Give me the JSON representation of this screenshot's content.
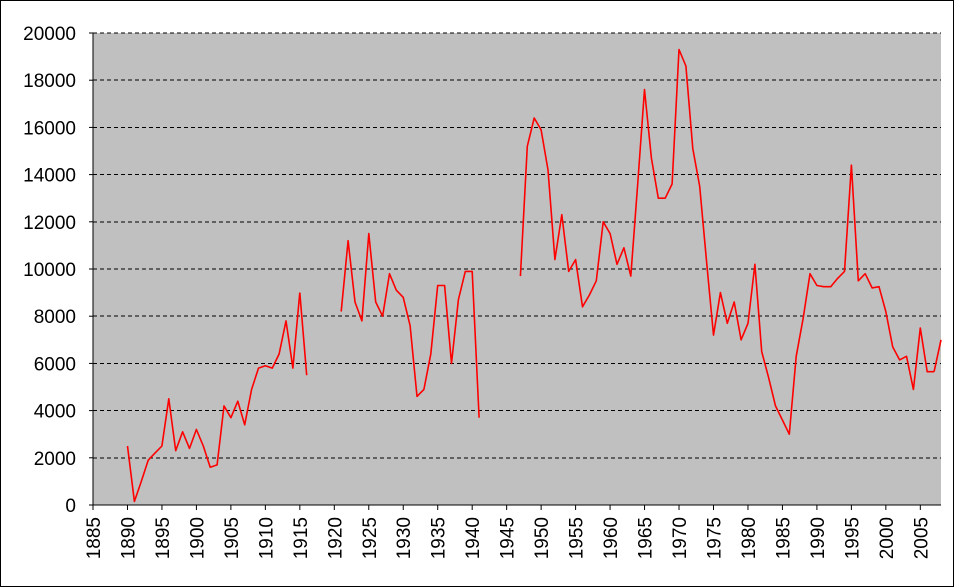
{
  "colors": {
    "plot_background": "#c0c0c0",
    "line": "#ff0000",
    "gridline": "#000000",
    "axis": "#000000"
  },
  "chart_data": {
    "type": "line",
    "title": "",
    "xlabel": "",
    "ylabel": "",
    "xlim": [
      1885,
      2008
    ],
    "ylim": [
      0,
      20000
    ],
    "grid": {
      "horizontal": true,
      "vertical": false,
      "style": "dashed"
    },
    "legend": "none",
    "x_ticks": [
      1885,
      1890,
      1895,
      1900,
      1905,
      1910,
      1915,
      1920,
      1925,
      1930,
      1935,
      1940,
      1945,
      1950,
      1955,
      1960,
      1965,
      1970,
      1975,
      1980,
      1985,
      1990,
      1995,
      2000,
      2005
    ],
    "y_ticks": [
      0,
      2000,
      4000,
      6000,
      8000,
      10000,
      12000,
      14000,
      16000,
      18000,
      20000
    ],
    "series": [
      {
        "color": "#ff0000",
        "segments": [
          {
            "x": [
              1890,
              1891,
              1892,
              1893,
              1894,
              1895,
              1896,
              1897,
              1898,
              1899,
              1900,
              1901,
              1902,
              1903,
              1904,
              1905,
              1906,
              1907,
              1908,
              1909,
              1910,
              1911,
              1912,
              1913,
              1914,
              1915
            ],
            "y": [
              2500,
              150,
              1000,
              1900,
              2200,
              2500,
              4500,
              2300,
              3100,
              2400,
              3200,
              2500,
              1600,
              1700,
              4200,
              3700,
              4400,
              3400,
              4900,
              5800,
              5900,
              5800,
              6400,
              7800,
              5800,
              9000
            ]
          },
          {
            "x": [
              1915,
              1916
            ],
            "y": [
              9000,
              5500
            ]
          },
          {
            "x": [
              1921,
              1922,
              1923,
              1924,
              1925,
              1926,
              1927,
              1928,
              1929,
              1930,
              1931,
              1932,
              1933,
              1934,
              1935,
              1936,
              1937,
              1938,
              1939,
              1940,
              1941
            ],
            "y": [
              8200,
              11200,
              8600,
              7800,
              11500,
              8600,
              8000,
              9800,
              9100,
              8800,
              7600,
              4600,
              4900,
              6400,
              9300,
              9300,
              6000,
              8700,
              9900,
              9900,
              3700
            ]
          },
          {
            "x": [
              1947,
              1948,
              1949,
              1950,
              1951,
              1952,
              1953,
              1954,
              1955,
              1956,
              1957,
              1958,
              1959,
              1960,
              1961,
              1962,
              1963,
              1964,
              1965,
              1966,
              1967,
              1968,
              1969,
              1970,
              1971,
              1972,
              1973,
              1974,
              1975,
              1976,
              1977,
              1978,
              1979,
              1980,
              1981,
              1982,
              1983,
              1984,
              1985,
              1986,
              1987,
              1988,
              1989,
              1990,
              1991,
              1992,
              1993,
              1994,
              1995,
              1996,
              1997,
              1998,
              1999,
              2000,
              2001,
              2002,
              2003,
              2004,
              2005,
              2006,
              2007
            ],
            "y": [
              9700,
              15200,
              16400,
              15900,
              14200,
              10400,
              12300,
              9900,
              10400,
              8400,
              8900,
              9500,
              12000,
              11500,
              10200,
              10900,
              9700,
              13600,
              17600,
              14700,
              13000,
              13000,
              13600,
              19300,
              18600,
              15100,
              13500,
              10300,
              7200,
              9000,
              7700,
              8600,
              7000,
              7700,
              10200,
              6500,
              5400,
              4200,
              3600,
              3000,
              6300,
              7900,
              9800,
              9300,
              9250,
              9250,
              9600,
              9900,
              14400,
              9500,
              9800,
              9200,
              9250,
              8200,
              6700,
              6150,
              6300,
              4900,
              7500,
              5650,
              5650
            ]
          },
          {
            "x": [
              2007,
              2008
            ],
            "y": [
              5650,
              7000
            ]
          }
        ]
      }
    ]
  }
}
